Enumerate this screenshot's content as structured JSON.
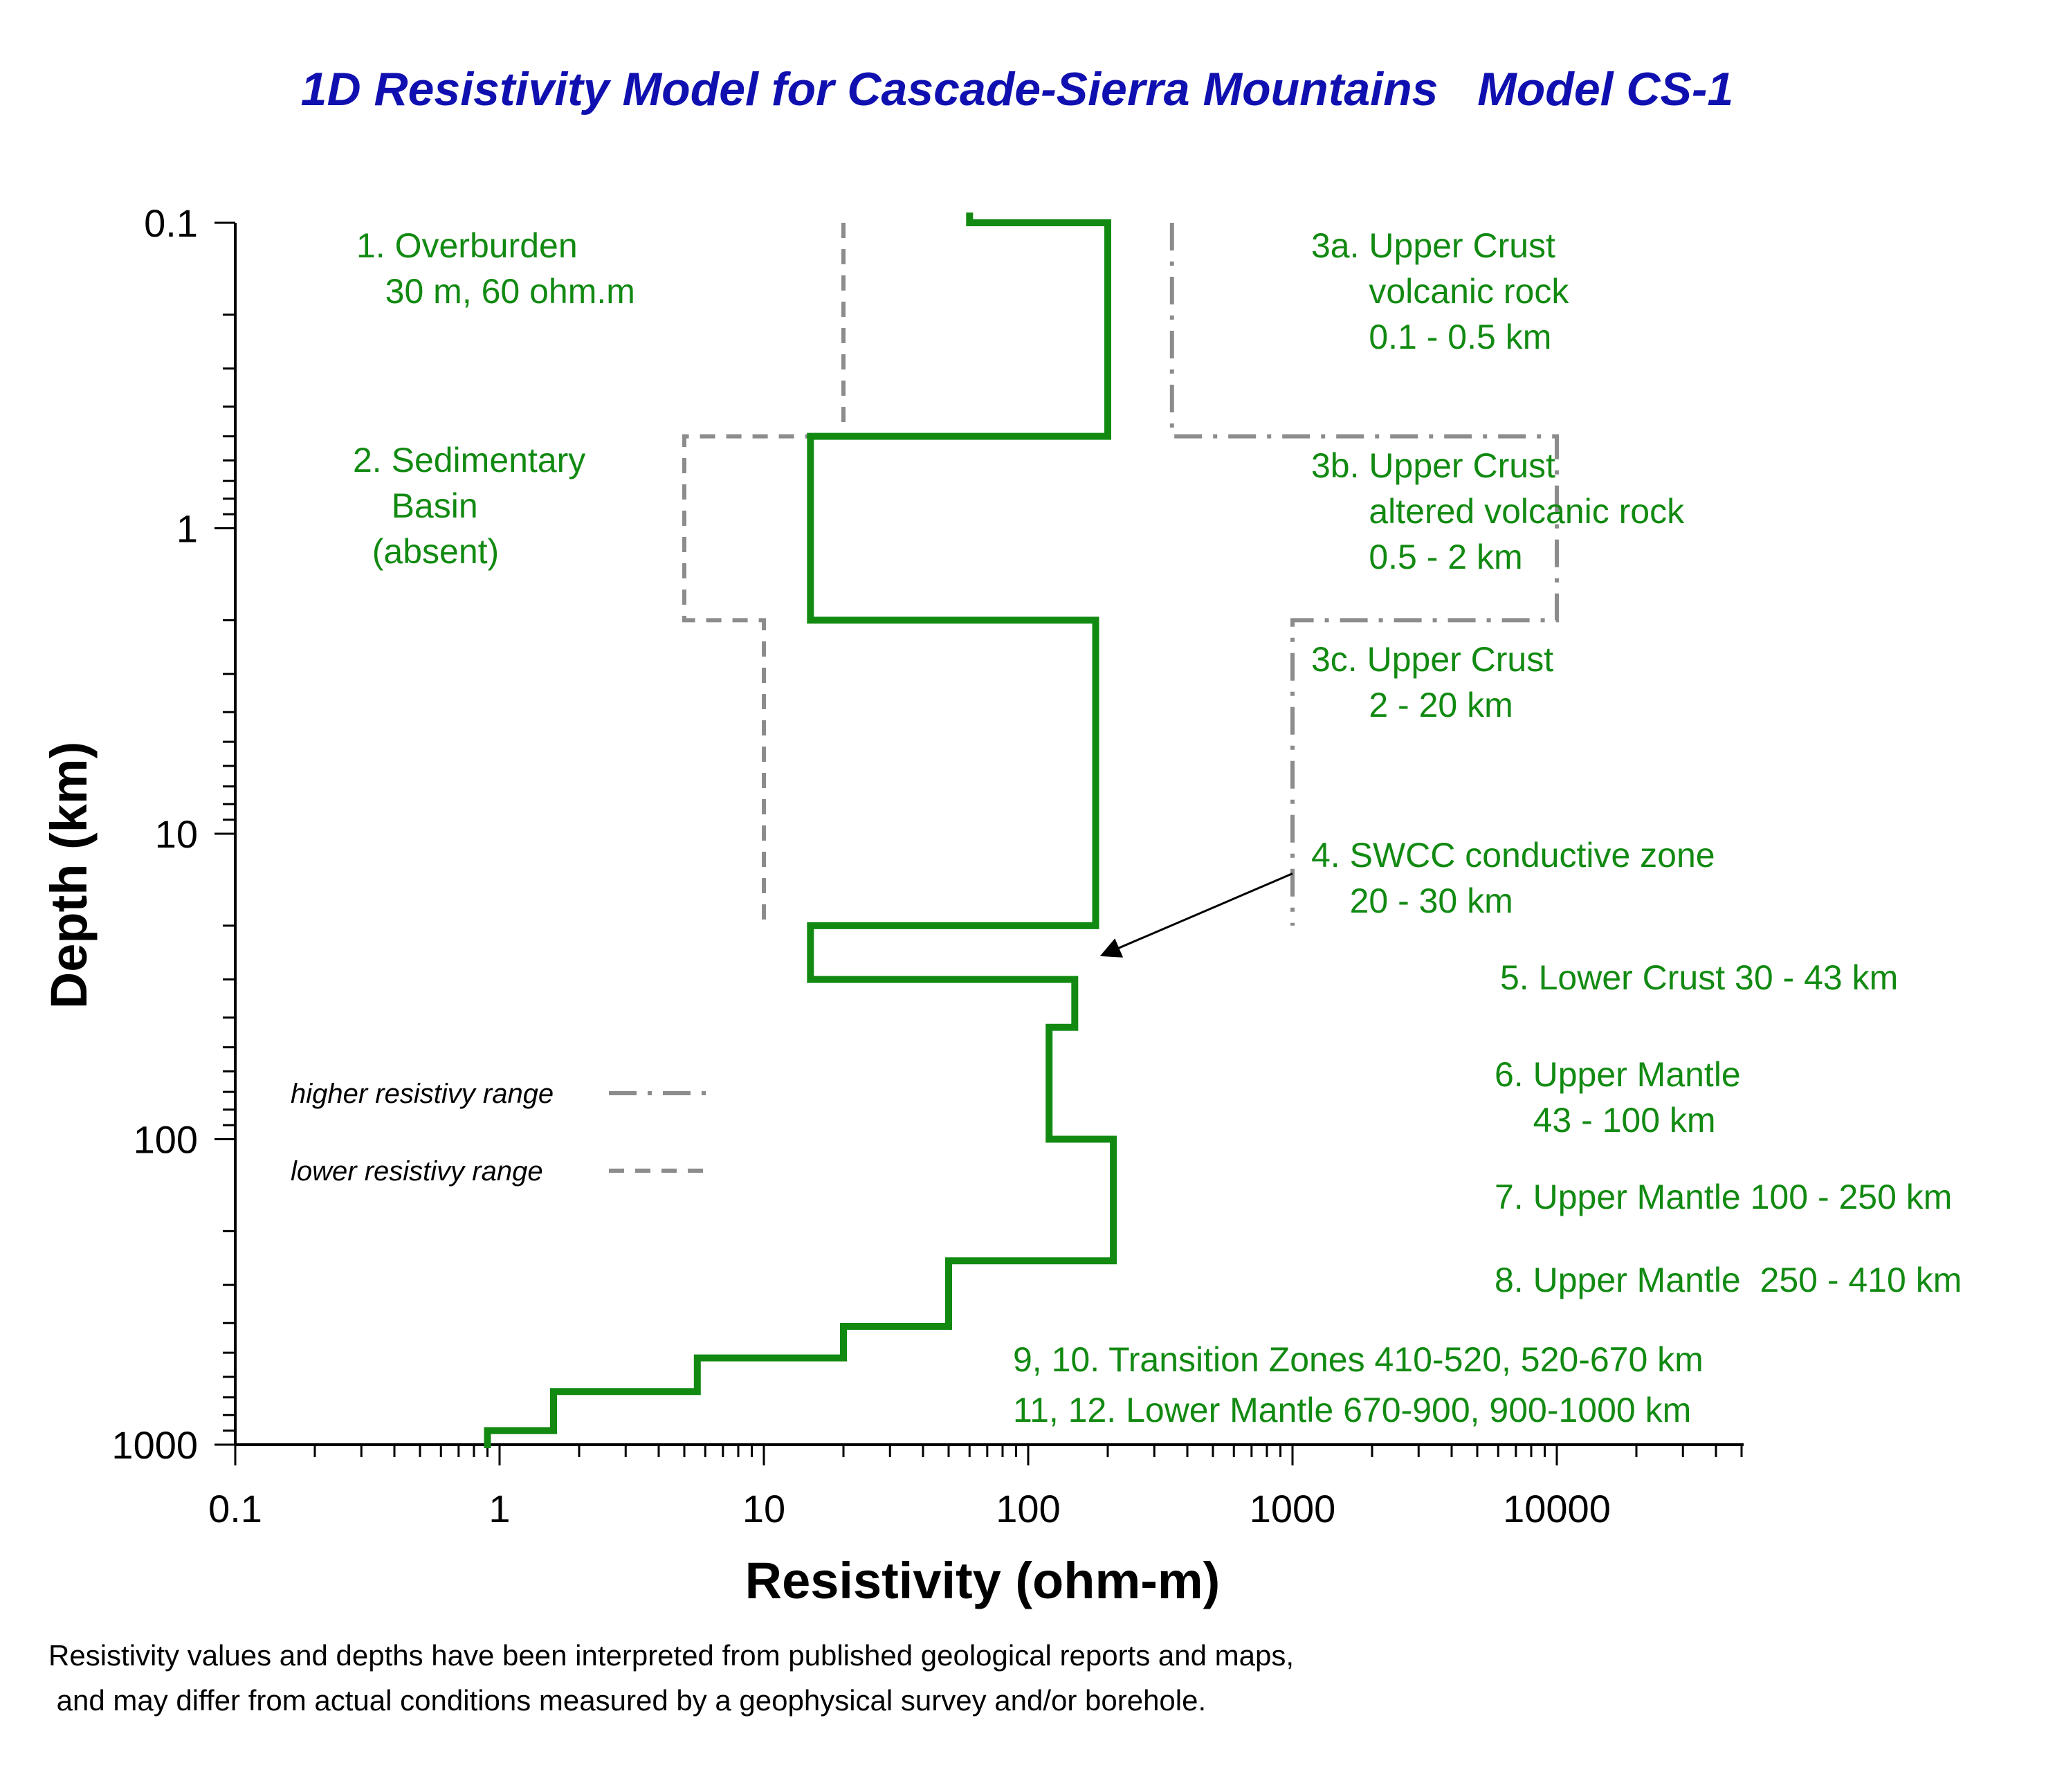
{
  "chart_data": {
    "type": "line",
    "title": "1D Resistivity Model for Cascade-Sierra Mountains   Model CS-1",
    "xlabel": "Resistivity (ohm-m)",
    "ylabel": "Depth (km)",
    "xscale": "log",
    "yscale": "log",
    "y_inverted": true,
    "xlim": [
      0.1,
      50000
    ],
    "ylim": [
      0.1,
      1000
    ],
    "x_ticks": [
      "0.1",
      "1",
      "10",
      "100",
      "1000",
      "10000"
    ],
    "y_ticks": [
      "0.1",
      "1",
      "10",
      "100",
      "1000"
    ],
    "grid": false,
    "series": [
      {
        "role": "model",
        "color": "#128a12",
        "style": "solid",
        "points": [
          [
            60,
            0.095
          ],
          [
            60,
            0.1
          ],
          [
            200,
            0.1
          ],
          [
            200,
            0.5
          ],
          [
            15,
            0.5
          ],
          [
            15,
            2
          ],
          [
            180,
            2
          ],
          [
            180,
            20
          ],
          [
            15,
            20
          ],
          [
            15,
            30
          ],
          [
            150,
            30
          ],
          [
            150,
            43
          ],
          [
            120,
            43
          ],
          [
            120,
            100
          ],
          [
            210,
            100
          ],
          [
            210,
            250
          ],
          [
            50,
            250
          ],
          [
            50,
            410
          ],
          [
            20,
            410
          ],
          [
            20,
            520
          ],
          [
            5.6,
            520
          ],
          [
            5.6,
            670
          ],
          [
            1.6,
            670
          ],
          [
            1.6,
            900
          ],
          [
            0.9,
            900
          ],
          [
            0.9,
            1000
          ]
        ]
      },
      {
        "name": "higher resistivy range",
        "color": "#8c8c8c",
        "style": "dashdot",
        "points": [
          [
            350,
            0.1
          ],
          [
            350,
            0.5
          ],
          [
            10000,
            0.5
          ],
          [
            10000,
            2
          ],
          [
            1000,
            2
          ],
          [
            1000,
            20
          ]
        ]
      },
      {
        "name": "lower resistivy range",
        "color": "#8c8c8c",
        "style": "dash",
        "points": [
          [
            20,
            0.1
          ],
          [
            20,
            0.5
          ],
          [
            5,
            0.5
          ],
          [
            5,
            2
          ],
          [
            10,
            2
          ],
          [
            10,
            20
          ]
        ]
      }
    ],
    "legend": {
      "position": "lower-left",
      "items": [
        "higher resistivy range",
        "lower resistivy range"
      ]
    },
    "annotations": [
      {
        "lines": [
          "1. Overburden",
          "   30 m, 60 ohm.m"
        ]
      },
      {
        "lines": [
          "2. Sedimentary",
          "    Basin",
          "  (absent)"
        ]
      },
      {
        "lines": [
          "3a. Upper Crust",
          "      volcanic rock",
          "      0.1 - 0.5 km"
        ]
      },
      {
        "lines": [
          "3b. Upper Crust",
          "      altered volcanic rock",
          "      0.5 - 2 km"
        ]
      },
      {
        "lines": [
          "3c. Upper Crust",
          "      2 - 20 km"
        ]
      },
      {
        "lines": [
          "4. SWCC conductive zone",
          "    20 - 30 km"
        ]
      },
      {
        "lines": [
          "5. Lower Crust 30 - 43 km"
        ]
      },
      {
        "lines": [
          "6. Upper Mantle",
          "    43 - 100 km"
        ]
      },
      {
        "lines": [
          "7. Upper Mantle 100 - 250 km"
        ]
      },
      {
        "lines": [
          "8. Upper Mantle  250 - 410 km"
        ]
      },
      {
        "lines": [
          "9, 10. Transition Zones 410-520, 520-670 km"
        ]
      },
      {
        "lines": [
          "11, 12. Lower Mantle 670-900, 900-1000 km"
        ]
      }
    ],
    "arrow": {
      "from": [
        1000,
        13.5
      ],
      "to": [
        190,
        25
      ]
    }
  },
  "footnote": {
    "line1": "Resistivity values and depths have been interpreted from published geological reports and maps,",
    "line2": " and may differ from actual conditions measured by a geophysical survey and/or borehole."
  }
}
